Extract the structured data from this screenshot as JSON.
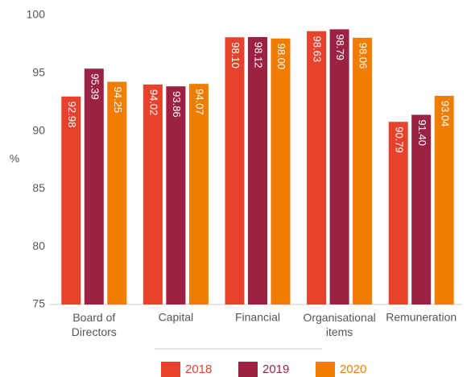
{
  "chart_data": {
    "type": "bar",
    "y_label": "%",
    "categories": [
      "Board of\nDirectors",
      "Capital",
      "Financial",
      "Organisational\nitems",
      "Remuneration"
    ],
    "series": [
      {
        "name": "2018",
        "color": "#e8412c",
        "values": [
          92.98,
          94.02,
          98.1,
          98.63,
          90.79
        ],
        "value_labels": [
          "92.98",
          "94.02",
          "98.10",
          "98.63",
          "90.79"
        ]
      },
      {
        "name": "2019",
        "color": "#9b2242",
        "values": [
          95.39,
          93.86,
          98.12,
          98.79,
          91.4
        ],
        "value_labels": [
          "95.39",
          "93.86",
          "98.12",
          "98.79",
          "91.40"
        ]
      },
      {
        "name": "2020",
        "color": "#f07d00",
        "values": [
          94.25,
          94.07,
          98.0,
          98.06,
          93.04
        ],
        "value_labels": [
          "94.25",
          "94.07",
          "98.00",
          "98.06",
          "93.04"
        ]
      }
    ],
    "ylim": [
      75,
      100
    ],
    "yticks": [
      75,
      80,
      85,
      90,
      95,
      100
    ],
    "grid": false,
    "legend": "bottom"
  }
}
